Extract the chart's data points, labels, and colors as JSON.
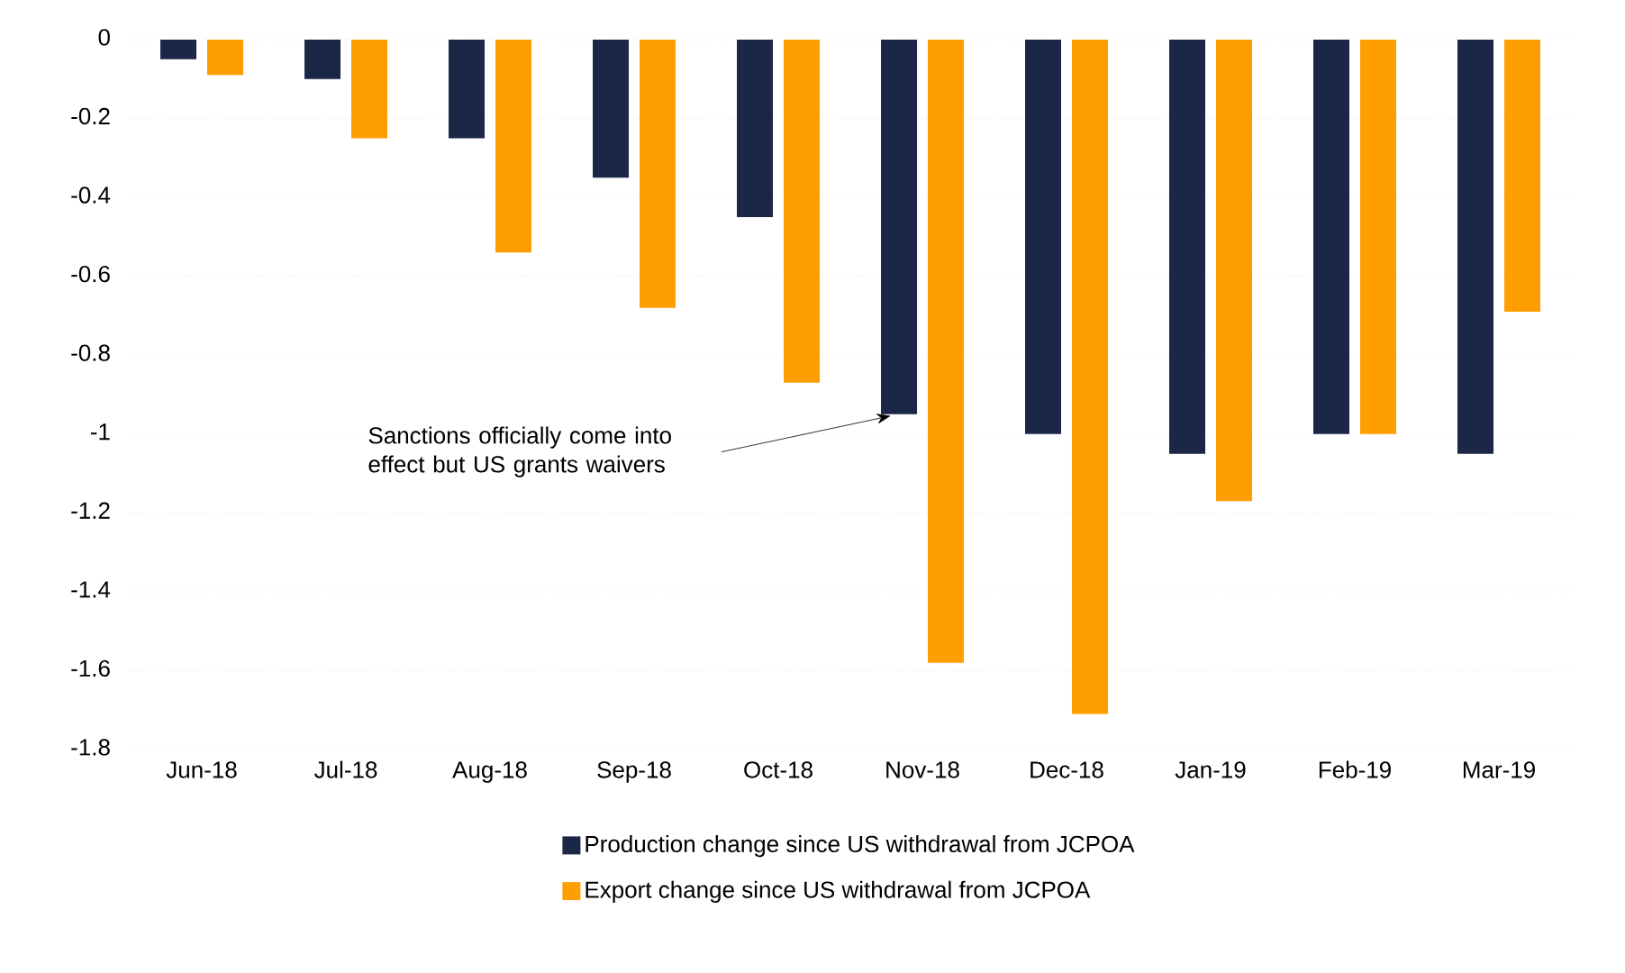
{
  "chart_data": {
    "type": "bar",
    "categories": [
      "Jun-18",
      "Jul-18",
      "Aug-18",
      "Sep-18",
      "Oct-18",
      "Nov-18",
      "Dec-18",
      "Jan-19",
      "Feb-19",
      "Mar-19"
    ],
    "series": [
      {
        "name": "Production change since US withdrawal from JCPOA",
        "color": "#1b2747",
        "values": [
          -0.05,
          -0.1,
          -0.25,
          -0.35,
          -0.45,
          -0.95,
          -1.0,
          -1.05,
          -1.0,
          -1.05
        ]
      },
      {
        "name": "Export change since US withdrawal from JCPOA",
        "color": "#ff9e00",
        "values": [
          -0.09,
          -0.25,
          -0.54,
          -0.68,
          -0.87,
          -1.58,
          -1.71,
          -1.17,
          -1.0,
          -0.69
        ]
      }
    ],
    "ylim": [
      -1.8,
      0
    ],
    "yticks": [
      0,
      -0.2,
      -0.4,
      -0.6,
      -0.8,
      -1,
      -1.2,
      -1.4,
      -1.6,
      -1.8
    ],
    "grid": "y",
    "legend": "bottom",
    "annotations": [
      "Sanctions officially come into effect but US grants waivers"
    ]
  }
}
